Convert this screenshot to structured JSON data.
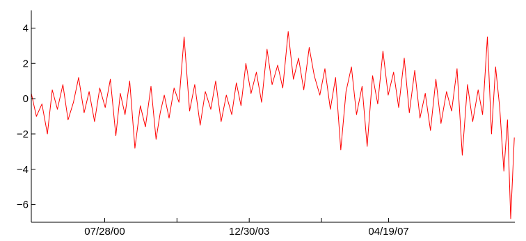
{
  "chart_data": {
    "type": "line",
    "title": "",
    "xlabel": "",
    "ylabel": "",
    "grid": false,
    "xlim": [
      "1998-11-01",
      "2010-04-15"
    ],
    "ylim": [
      -7,
      5
    ],
    "yticks": [
      4,
      2,
      0,
      -2,
      -4,
      -6
    ],
    "ytick_labels": [
      "4",
      "2",
      "0",
      "−2",
      "−4",
      "−6"
    ],
    "xticks": [
      "2000-07-28",
      "2002-04-14",
      "2003-12-30",
      "2005-09-15",
      "2007-04-19"
    ],
    "xtick_labels": [
      "07/28/00",
      "",
      "12/30/03",
      "",
      "04/19/07"
    ],
    "series": [
      {
        "color": "#ff0000",
        "x": [
          "1998-11-01",
          "1998-12-15",
          "1999-02-01",
          "1999-03-20",
          "1999-05-01",
          "1999-06-15",
          "1999-08-01",
          "1999-09-15",
          "1999-11-01",
          "1999-12-15",
          "2000-02-01",
          "2000-03-15",
          "2000-05-01",
          "2000-06-15",
          "2000-08-01",
          "2000-09-15",
          "2000-11-01",
          "2000-12-10",
          "2001-01-20",
          "2001-03-01",
          "2001-04-15",
          "2001-06-01",
          "2001-07-15",
          "2001-09-01",
          "2001-10-15",
          "2001-11-20",
          "2001-12-25",
          "2002-02-05",
          "2002-03-20",
          "2002-05-01",
          "2002-06-15",
          "2002-08-01",
          "2002-09-15",
          "2002-11-01",
          "2002-12-15",
          "2003-02-01",
          "2003-03-15",
          "2003-05-01",
          "2003-06-15",
          "2003-08-01",
          "2003-09-10",
          "2003-10-20",
          "2003-12-01",
          "2004-01-15",
          "2004-03-01",
          "2004-04-15",
          "2004-06-01",
          "2004-07-15",
          "2004-09-01",
          "2004-10-15",
          "2004-12-01",
          "2005-01-15",
          "2005-03-01",
          "2005-04-15",
          "2005-06-01",
          "2005-07-15",
          "2005-09-01",
          "2005-10-15",
          "2005-12-01",
          "2006-01-15",
          "2006-03-01",
          "2006-04-15",
          "2006-06-01",
          "2006-07-15",
          "2006-09-01",
          "2006-10-15",
          "2006-12-01",
          "2007-01-15",
          "2007-03-01",
          "2007-04-15",
          "2007-06-01",
          "2007-07-15",
          "2007-09-01",
          "2007-10-15",
          "2007-12-01",
          "2008-01-15",
          "2008-03-01",
          "2008-04-15",
          "2008-06-01",
          "2008-07-15",
          "2008-09-01",
          "2008-10-15",
          "2008-12-01",
          "2009-01-15",
          "2009-03-01",
          "2009-04-15",
          "2009-06-01",
          "2009-07-10",
          "2009-08-20",
          "2009-09-25",
          "2009-10-30",
          "2009-12-05",
          "2010-01-10",
          "2010-02-10",
          "2010-03-10",
          "2010-04-10"
        ],
        "y": [
          0.3,
          -1.0,
          -0.3,
          -2.0,
          0.5,
          -0.6,
          0.8,
          -1.2,
          -0.2,
          1.2,
          -0.8,
          0.4,
          -1.3,
          0.6,
          -0.5,
          1.1,
          -2.1,
          0.3,
          -0.9,
          1.0,
          -2.8,
          -0.4,
          -1.6,
          0.7,
          -2.3,
          -0.8,
          0.2,
          -1.1,
          0.6,
          -0.2,
          3.5,
          -0.7,
          0.8,
          -1.5,
          0.4,
          -0.6,
          1.0,
          -1.3,
          0.2,
          -0.9,
          0.9,
          -0.4,
          2.0,
          0.3,
          1.5,
          -0.2,
          2.8,
          0.8,
          1.9,
          0.6,
          3.8,
          1.1,
          2.3,
          0.5,
          2.9,
          1.3,
          0.2,
          1.7,
          -0.6,
          1.2,
          -2.9,
          0.4,
          1.8,
          -0.9,
          0.7,
          -2.7,
          1.3,
          -0.3,
          2.7,
          0.2,
          1.5,
          -0.5,
          2.3,
          -0.8,
          1.6,
          -1.1,
          0.3,
          -1.8,
          1.1,
          -1.4,
          0.4,
          -0.7,
          1.7,
          -3.2,
          0.8,
          -1.3,
          0.5,
          -0.9,
          3.5,
          -2.0,
          1.8,
          -0.5,
          -4.1,
          -1.2,
          -6.8,
          -2.2
        ]
      }
    ]
  }
}
